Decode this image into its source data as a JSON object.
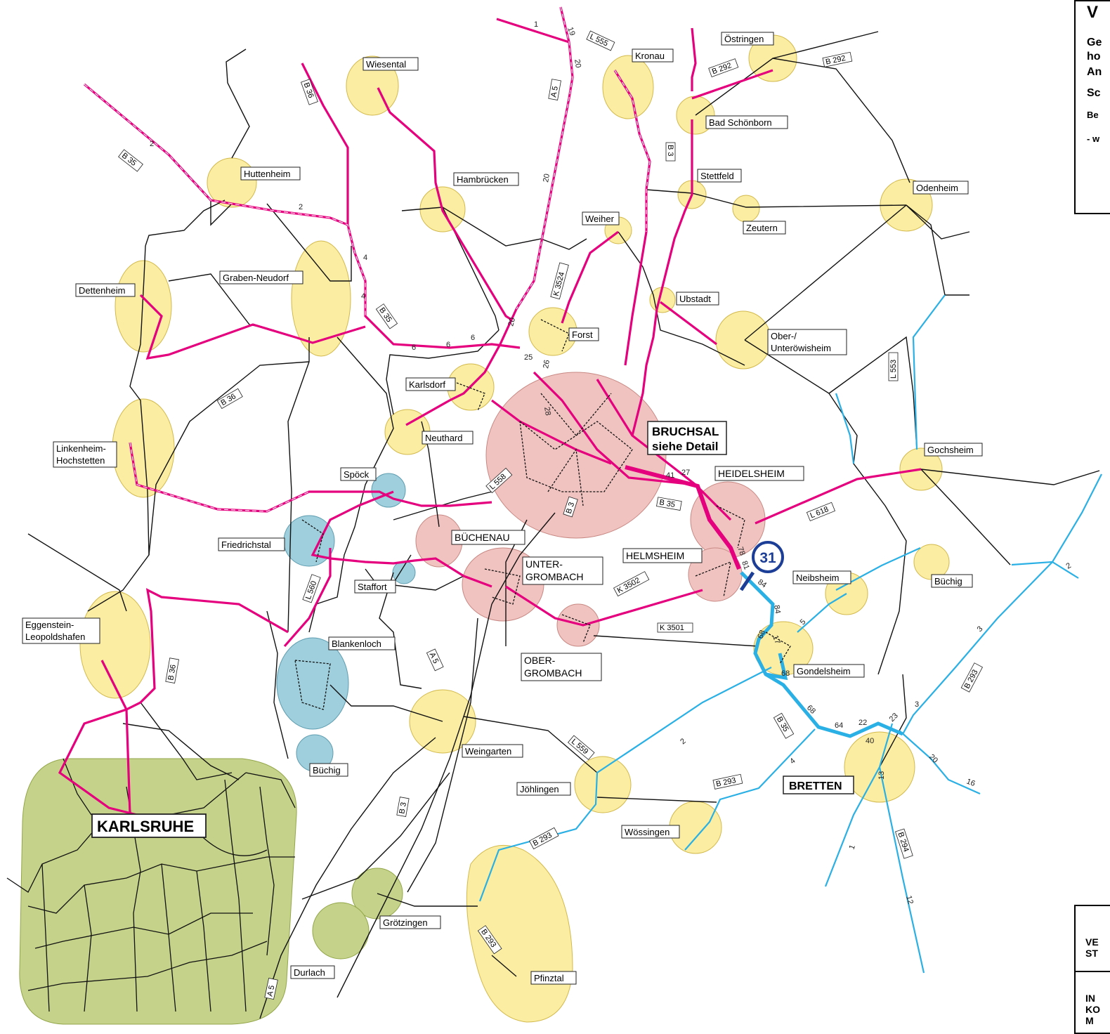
{
  "legend": {
    "title": "V",
    "lines": [
      "Ge",
      "ho",
      "An",
      "Sc",
      "Be",
      "- w"
    ],
    "footer_lines": [
      "VE",
      "ST",
      "IN",
      "KO",
      "M"
    ]
  },
  "towns": {
    "wiesental": "Wiesental",
    "kronau": "Kronau",
    "oestringen": "Östringen",
    "bad_schoenborn": "Bad Schönborn",
    "huttenheim": "Huttenheim",
    "hambruecken": "Hambrücken",
    "stettfeld": "Stettfeld",
    "odenheim": "Odenheim",
    "zeutern": "Zeutern",
    "weiher": "Weiher",
    "graben_neudorf": "Graben-Neudorf",
    "dettenheim": "Dettenheim",
    "ubstadt": "Ubstadt",
    "forst": "Forst",
    "ober_unteroewisheim_1": "Ober-/",
    "ober_unteroewisheim_2": "Unteröwisheim",
    "karlsdorf": "Karlsdorf",
    "bruchsal_1": "BRUCHSAL",
    "bruchsal_2": "siehe Detail",
    "neuthard": "Neuthard",
    "linkenheim_1": "Linkenheim-",
    "linkenheim_2": "Hochstetten",
    "gochsheim": "Gochsheim",
    "spoeck": "Spöck",
    "heidelsheim": "HEIDELSHEIM",
    "buechenau": "BÜCHENAU",
    "friedrichstal": "Friedrichstal",
    "helmsheim": "HELMSHEIM",
    "untergrombach_1": "UNTER-",
    "untergrombach_2": "GROMBACH",
    "neibsheim": "Neibsheim",
    "stafforth": "Staffort",
    "buechig_east": "Büchig",
    "eggenstein_1": "Eggenstein-",
    "eggenstein_2": "Leopoldshafen",
    "blankenloch": "Blankenloch",
    "obergrombach_1": "OBER-",
    "obergrombach_2": "GROMBACH",
    "gondelsheim": "Gondelsheim",
    "weingarten": "Weingarten",
    "buechig_west": "Büchig",
    "joehlingen": "Jöhlingen",
    "bretten": "BRETTEN",
    "karlsruhe": "KARLSRUHE",
    "woessingen": "Wössingen",
    "groetzingen": "Grötzingen",
    "durlach": "Durlach",
    "pfinztal": "Pfinztal"
  },
  "roads": {
    "l555": "L 555",
    "b292a": "B 292",
    "b292b": "B 292",
    "b36a": "B 36",
    "a5a": "A 5",
    "b3a": "B 3",
    "b35a": "B 35",
    "k3524": "K 3524",
    "b35b": "B 35",
    "b36b": "B 36",
    "l553": "L 553",
    "l558": "L 558",
    "b3b": "B 3",
    "b35c": "B 35",
    "l618": "L 618",
    "l560": "L 560",
    "k3502": "K 3502",
    "k3501": "K 3501",
    "a5b": "A 5",
    "b36c": "B 36",
    "b35d": "B 35",
    "b293a": "B 293",
    "l559": "L 559",
    "b293b": "B 293",
    "b3c": "B 3",
    "b293c": "B 293",
    "b294": "B 294",
    "b293d": "B 293",
    "a5c": "A 5"
  },
  "route_marker": "31",
  "counts": {
    "c1": "1",
    "c19": "19",
    "c20a": "20",
    "c20b": "20",
    "c20c": "20",
    "c2a": "2",
    "c2b": "2",
    "c4a": "4",
    "c4b": "4",
    "c6a": "6",
    "c6b": "6",
    "c6c": "6",
    "c25": "25",
    "c26": "26",
    "c28": "28",
    "c27": "27",
    "c41": "41",
    "c84a": "84",
    "c84b": "84",
    "c78": "78",
    "c81": "81",
    "c17": "17",
    "c68a": "68",
    "c68b": "68",
    "c68c": "68",
    "c64": "64",
    "c22": "22",
    "c23": "23",
    "c40": "40",
    "c13": "13",
    "c20d": "20",
    "c16": "16",
    "c12": "12",
    "c3a": "3",
    "c3b": "3",
    "c5": "5",
    "c2c": "2",
    "c4c": "4",
    "c1b": "1",
    "c2d": "2"
  },
  "colors": {
    "town_yellow": "#fbeea3",
    "town_pink": "#f1c3c0",
    "town_blue": "#9fcfdc",
    "town_green": "#c5d38a",
    "road_magenta": "#e5007e",
    "road_cyan": "#2ab0e4",
    "marker_blue": "#1d3e96"
  }
}
